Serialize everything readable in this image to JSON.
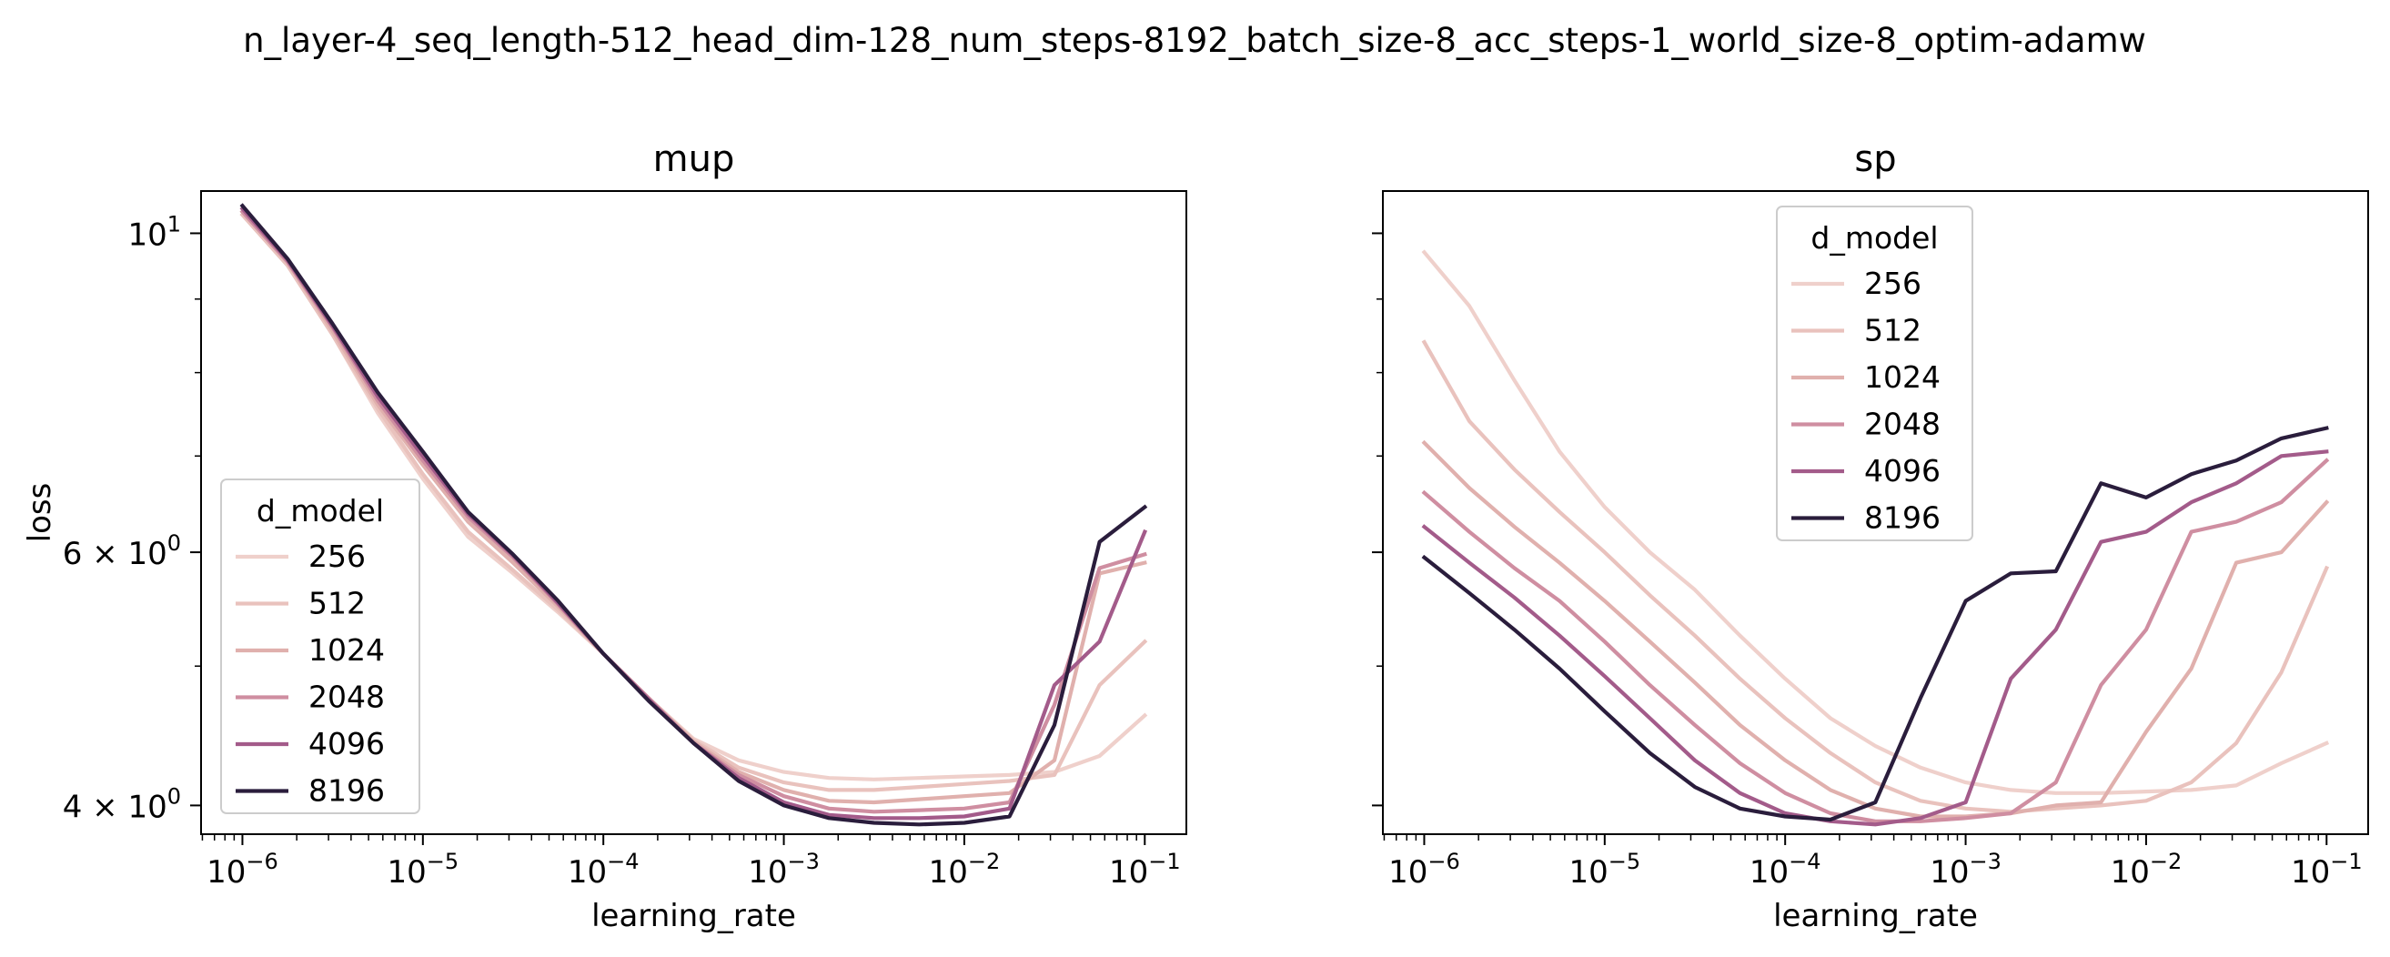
{
  "figure": {
    "suptitle": "n_layer-4_seq_length-512_head_dim-128_num_steps-8192_batch_size-8_acc_steps-1_world_size-8_optim-adamw"
  },
  "chart_data": [
    {
      "type": "line",
      "title": "mup",
      "xlabel": "learning_rate",
      "ylabel": "loss",
      "xscale": "log",
      "yscale": "log",
      "xlim": [
        5.9e-07,
        0.17
      ],
      "ylim": [
        3.82,
        10.7
      ],
      "xticks": [
        {
          "value": 1e-06,
          "base": "10",
          "exp": "−6"
        },
        {
          "value": 1e-05,
          "base": "10",
          "exp": "−5"
        },
        {
          "value": 0.0001,
          "base": "10",
          "exp": "−4"
        },
        {
          "value": 0.001,
          "base": "10",
          "exp": "−3"
        },
        {
          "value": 0.01,
          "base": "10",
          "exp": "−2"
        },
        {
          "value": 0.1,
          "base": "10",
          "exp": "−1"
        }
      ],
      "yticks": [
        {
          "value": 4,
          "base": "4 × 10",
          "exp": "0"
        },
        {
          "value": 6,
          "base": "6 × 10",
          "exp": "0"
        },
        {
          "value": 10,
          "base": "10",
          "exp": "1"
        }
      ],
      "yminor": [
        5,
        7,
        8,
        9
      ],
      "grid": false,
      "legend": {
        "title": "d_model",
        "placement": "lower-left"
      },
      "x": [
        1e-06,
        1.78e-06,
        3.16e-06,
        5.62e-06,
        1e-05,
        1.78e-05,
        3.16e-05,
        5.62e-05,
        0.0001,
        0.000178,
        0.000316,
        0.000562,
        0.001,
        0.00178,
        0.00316,
        0.00562,
        0.01,
        0.0178,
        0.0316,
        0.0562,
        0.1
      ],
      "series": [
        {
          "name": "256",
          "color": "#efd0cb",
          "values": [
            10.3,
            9.5,
            8.5,
            7.5,
            6.75,
            6.15,
            5.8,
            5.45,
            5.1,
            4.75,
            4.45,
            4.3,
            4.22,
            4.18,
            4.17,
            4.18,
            4.19,
            4.2,
            4.22,
            4.33,
            4.62
          ]
        },
        {
          "name": "512",
          "color": "#e9c2bd",
          "values": [
            10.3,
            9.5,
            8.5,
            7.55,
            6.8,
            6.2,
            5.83,
            5.47,
            5.1,
            4.75,
            4.44,
            4.25,
            4.15,
            4.1,
            4.1,
            4.12,
            4.14,
            4.16,
            4.2,
            4.85,
            5.2
          ]
        },
        {
          "name": "1024",
          "color": "#e0b0ad",
          "values": [
            10.35,
            9.55,
            8.55,
            7.6,
            6.9,
            6.3,
            5.9,
            5.5,
            5.1,
            4.75,
            4.43,
            4.22,
            4.1,
            4.03,
            4.02,
            4.04,
            4.06,
            4.08,
            4.3,
            5.8,
            5.9
          ]
        },
        {
          "name": "2048",
          "color": "#cf8ea1",
          "values": [
            10.35,
            9.55,
            8.6,
            7.65,
            6.95,
            6.35,
            5.95,
            5.52,
            5.1,
            4.75,
            4.42,
            4.2,
            4.06,
            3.98,
            3.96,
            3.97,
            3.98,
            4.02,
            4.7,
            5.85,
            5.98
          ]
        },
        {
          "name": "4096",
          "color": "#a35b8a",
          "values": [
            10.4,
            9.58,
            8.62,
            7.7,
            7.0,
            6.38,
            5.97,
            5.53,
            5.1,
            4.74,
            4.42,
            4.18,
            4.02,
            3.94,
            3.92,
            3.92,
            3.93,
            3.98,
            4.85,
            5.2,
            6.2
          ]
        },
        {
          "name": "8196",
          "color": "#2a1d3c",
          "values": [
            10.45,
            9.6,
            8.65,
            7.75,
            7.05,
            6.4,
            5.98,
            5.55,
            5.1,
            4.73,
            4.42,
            4.16,
            4.0,
            3.92,
            3.89,
            3.88,
            3.89,
            3.93,
            4.55,
            6.1,
            6.45
          ]
        }
      ]
    },
    {
      "type": "line",
      "title": "sp",
      "xlabel": "learning_rate",
      "ylabel": "",
      "xscale": "log",
      "yscale": "log",
      "xlim": [
        5.9e-07,
        0.17
      ],
      "ylim": [
        3.82,
        10.7
      ],
      "xticks": [
        {
          "value": 1e-06,
          "base": "10",
          "exp": "−6"
        },
        {
          "value": 1e-05,
          "base": "10",
          "exp": "−5"
        },
        {
          "value": 0.0001,
          "base": "10",
          "exp": "−4"
        },
        {
          "value": 0.001,
          "base": "10",
          "exp": "−3"
        },
        {
          "value": 0.01,
          "base": "10",
          "exp": "−2"
        },
        {
          "value": 0.1,
          "base": "10",
          "exp": "−1"
        }
      ],
      "yticks": [
        {
          "value": 4,
          "base": "",
          "exp": ""
        },
        {
          "value": 6,
          "base": "",
          "exp": ""
        },
        {
          "value": 10,
          "base": "",
          "exp": ""
        }
      ],
      "yminor": [
        5,
        7,
        8,
        9
      ],
      "grid": false,
      "legend": {
        "title": "d_model",
        "placement": "upper-center"
      },
      "x": [
        1e-06,
        1.78e-06,
        3.16e-06,
        5.62e-06,
        1e-05,
        1.78e-05,
        3.16e-05,
        5.62e-05,
        0.0001,
        0.000178,
        0.000316,
        0.000562,
        0.001,
        0.00178,
        0.00316,
        0.00562,
        0.01,
        0.0178,
        0.0316,
        0.0562,
        0.1
      ],
      "series": [
        {
          "name": "256",
          "color": "#efd0cb",
          "values": [
            9.7,
            8.9,
            7.9,
            7.05,
            6.45,
            6.0,
            5.65,
            5.25,
            4.9,
            4.6,
            4.4,
            4.25,
            4.15,
            4.1,
            4.08,
            4.08,
            4.09,
            4.1,
            4.13,
            4.28,
            4.42
          ]
        },
        {
          "name": "512",
          "color": "#e9c2bd",
          "values": [
            8.4,
            7.4,
            6.85,
            6.4,
            6.0,
            5.6,
            5.25,
            4.9,
            4.6,
            4.35,
            4.15,
            4.03,
            3.98,
            3.96,
            3.98,
            4.0,
            4.03,
            4.15,
            4.42,
            4.95,
            5.85
          ]
        },
        {
          "name": "1024",
          "color": "#e0b0ad",
          "values": [
            7.15,
            6.65,
            6.25,
            5.9,
            5.55,
            5.2,
            4.87,
            4.55,
            4.3,
            4.1,
            3.98,
            3.93,
            3.93,
            3.95,
            4.0,
            4.02,
            4.5,
            4.98,
            5.9,
            6.0,
            6.5
          ]
        },
        {
          "name": "2048",
          "color": "#cf8ea1",
          "values": [
            6.6,
            6.2,
            5.85,
            5.55,
            5.2,
            4.85,
            4.55,
            4.28,
            4.08,
            3.95,
            3.9,
            3.9,
            3.92,
            3.95,
            4.15,
            4.85,
            5.3,
            6.2,
            6.3,
            6.5,
            6.95
          ]
        },
        {
          "name": "4096",
          "color": "#a35b8a",
          "values": [
            6.25,
            5.9,
            5.58,
            5.25,
            4.92,
            4.6,
            4.3,
            4.08,
            3.95,
            3.9,
            3.88,
            3.92,
            4.02,
            4.9,
            5.3,
            6.1,
            6.2,
            6.5,
            6.7,
            7.0,
            7.05
          ]
        },
        {
          "name": "8196",
          "color": "#2a1d3c",
          "values": [
            5.95,
            5.62,
            5.3,
            4.98,
            4.65,
            4.35,
            4.12,
            3.98,
            3.93,
            3.91,
            4.02,
            4.75,
            5.55,
            5.8,
            5.82,
            6.7,
            6.55,
            6.8,
            6.95,
            7.2,
            7.32
          ]
        }
      ]
    }
  ]
}
